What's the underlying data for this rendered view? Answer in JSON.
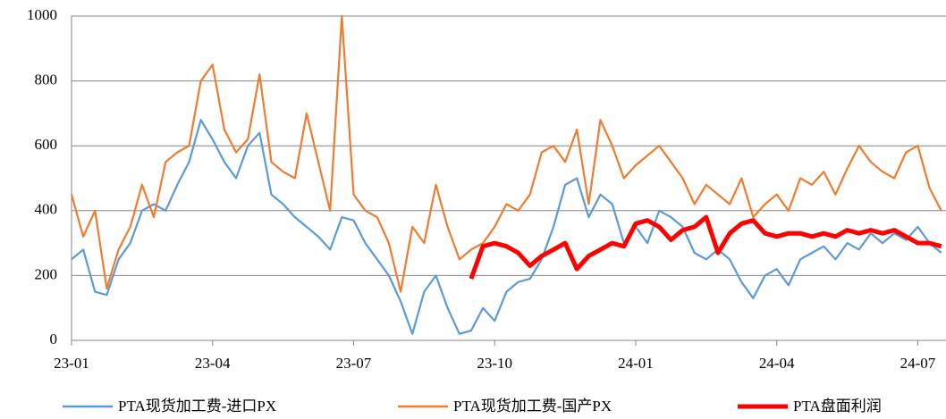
{
  "chart_data": {
    "type": "line",
    "x": [
      0,
      0.25,
      0.5,
      0.75,
      1,
      1.25,
      1.5,
      1.75,
      2,
      2.25,
      2.5,
      2.75,
      3,
      3.25,
      3.5,
      3.75,
      4,
      4.25,
      4.5,
      4.75,
      5,
      5.25,
      5.5,
      5.75,
      6,
      6.25,
      6.5,
      6.75,
      7,
      7.25,
      7.5,
      7.75,
      8,
      8.25,
      8.5,
      8.75,
      9,
      9.25,
      9.5,
      9.75,
      10,
      10.25,
      10.5,
      10.75,
      11,
      11.25,
      11.5,
      11.75,
      12,
      12.25,
      12.5,
      12.75,
      13,
      13.25,
      13.5,
      13.75,
      14,
      14.25,
      14.5,
      14.75,
      15,
      15.25,
      15.5,
      15.75,
      16,
      16.25,
      16.5,
      16.75,
      17,
      17.25,
      17.5,
      17.75,
      18,
      18.25,
      18.5
    ],
    "series": [
      {
        "name": "PTA现货加工费-进口PX",
        "color": "#5b9bd5",
        "values": [
          250,
          280,
          150,
          140,
          250,
          300,
          400,
          420,
          400,
          480,
          550,
          680,
          620,
          550,
          500,
          600,
          640,
          450,
          420,
          380,
          350,
          320,
          280,
          380,
          370,
          300,
          250,
          200,
          120,
          20,
          150,
          200,
          100,
          20,
          30,
          100,
          60,
          150,
          180,
          190,
          250,
          350,
          480,
          500,
          380,
          450,
          420,
          300,
          350,
          300,
          400,
          380,
          350,
          270,
          250,
          280,
          250,
          180,
          130,
          200,
          220,
          170,
          250,
          270,
          290,
          250,
          300,
          280,
          330,
          300,
          330,
          310,
          350,
          300,
          270
        ]
      },
      {
        "name": "PTA现货加工费-国产PX",
        "color": "#ed7d31",
        "values": [
          450,
          320,
          400,
          160,
          280,
          350,
          480,
          380,
          550,
          580,
          600,
          800,
          850,
          650,
          580,
          620,
          820,
          550,
          520,
          500,
          700,
          550,
          400,
          1000,
          450,
          400,
          380,
          300,
          150,
          350,
          300,
          480,
          350,
          250,
          280,
          300,
          350,
          420,
          400,
          450,
          580,
          600,
          550,
          650,
          420,
          680,
          600,
          500,
          540,
          570,
          600,
          550,
          500,
          420,
          480,
          450,
          420,
          500,
          380,
          420,
          450,
          400,
          500,
          480,
          520,
          450,
          530,
          600,
          550,
          520,
          500,
          580,
          600,
          470,
          400
        ]
      },
      {
        "name": "PTA盘面利润",
        "color": "#ff0000",
        "values": [
          null,
          null,
          null,
          null,
          null,
          null,
          null,
          null,
          null,
          null,
          null,
          null,
          null,
          null,
          null,
          null,
          null,
          null,
          null,
          null,
          null,
          null,
          null,
          null,
          null,
          null,
          null,
          null,
          null,
          null,
          null,
          null,
          null,
          null,
          190,
          290,
          300,
          290,
          270,
          230,
          260,
          280,
          300,
          220,
          260,
          280,
          300,
          290,
          360,
          370,
          350,
          310,
          340,
          350,
          380,
          270,
          330,
          360,
          370,
          330,
          320,
          330,
          330,
          320,
          330,
          320,
          340,
          330,
          340,
          330,
          340,
          320,
          300,
          300,
          290
        ]
      }
    ],
    "xlim": [
      0,
      18.6
    ],
    "xticks": [
      {
        "value": 0,
        "label": "23-01"
      },
      {
        "value": 3,
        "label": "23-04"
      },
      {
        "value": 6,
        "label": "23-07"
      },
      {
        "value": 9,
        "label": "23-10"
      },
      {
        "value": 12,
        "label": "24-01"
      },
      {
        "value": 15,
        "label": "24-04"
      },
      {
        "value": 18,
        "label": "24-07"
      }
    ],
    "ylim": [
      0,
      1000
    ],
    "yticks": [
      0,
      200,
      400,
      600,
      800,
      1000
    ],
    "grid": true,
    "legend": "bottom"
  }
}
